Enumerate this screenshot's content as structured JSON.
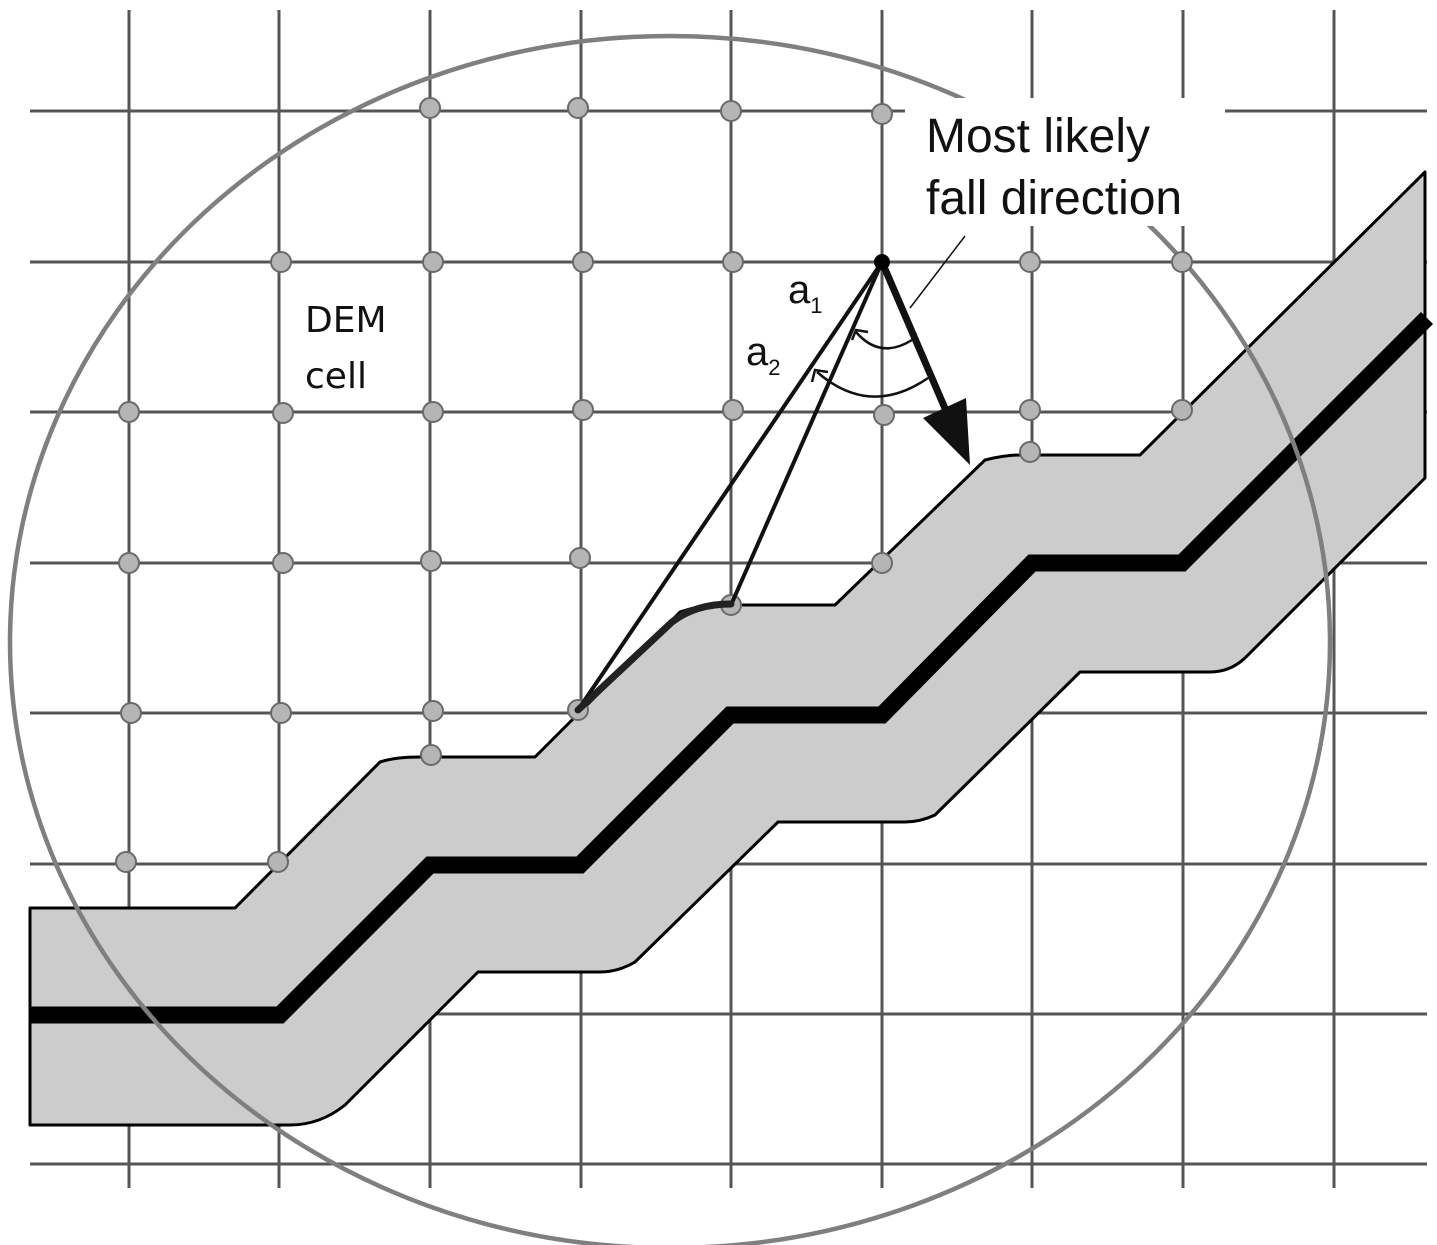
{
  "labels": {
    "fall_direction_line1": "Most likely",
    "fall_direction_line2": "fall direction",
    "dem_cell_line1": "DEM",
    "dem_cell_line2": "cell",
    "angle1": {
      "base": "a",
      "sub": "1"
    },
    "angle2": {
      "base": "a",
      "sub": "2"
    }
  },
  "colors": {
    "grid": "#555555",
    "circle": "#7f7f7f",
    "buffer_fill": "#cccccc",
    "road": "#000000",
    "node_fill": "#b5b5b5",
    "node_stroke": "#6a6a6a",
    "text": "#111111"
  }
}
